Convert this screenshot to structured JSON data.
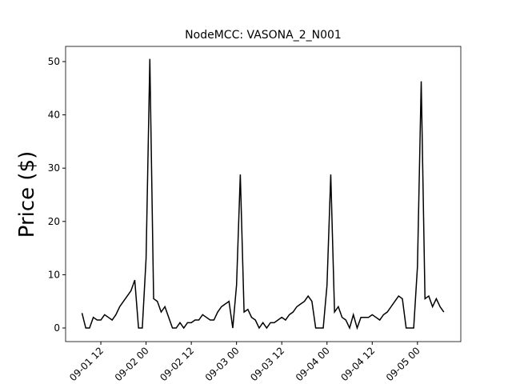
{
  "chart_data": {
    "type": "line",
    "title": "NodeMCC: VASONA_2_N001",
    "y_label": "Price ($)",
    "x": [
      7,
      8,
      9,
      10,
      11,
      12,
      13,
      14,
      15,
      16,
      17,
      18,
      19,
      20,
      21,
      22,
      23,
      24,
      25,
      26,
      27,
      28,
      29,
      30,
      31,
      32,
      33,
      34,
      35,
      36,
      37,
      38,
      39,
      40,
      41,
      42,
      43,
      44,
      45,
      46,
      47,
      48,
      49,
      50,
      51,
      52,
      53,
      54,
      55,
      56,
      57,
      58,
      59,
      60,
      61,
      62,
      63,
      64,
      65,
      66,
      67,
      68,
      69,
      70,
      71,
      72,
      73,
      74,
      75,
      76,
      77,
      78,
      79,
      80,
      81,
      82,
      83,
      84,
      85,
      86,
      87,
      88,
      89,
      90,
      91,
      92,
      93,
      94,
      95,
      96,
      97,
      98,
      99,
      100,
      101,
      102,
      103
    ],
    "series": [
      {
        "name": "VASONA_2_N001",
        "color": "#000000",
        "values": [
          2.8,
          0,
          0,
          2,
          1.5,
          1.5,
          2.5,
          2,
          1.5,
          2.5,
          4,
          5,
          6,
          7,
          9,
          0,
          0,
          13,
          50.5,
          5.5,
          5,
          3,
          4,
          2,
          0,
          0,
          1,
          0,
          1,
          1,
          1.5,
          1.5,
          2.5,
          2,
          1.5,
          1.5,
          3,
          4,
          4.5,
          5,
          0,
          8,
          28.8,
          3,
          3.5,
          2,
          1.5,
          0,
          1,
          0,
          1,
          1,
          1.5,
          2,
          1.5,
          2.5,
          3,
          4,
          4.5,
          5,
          6,
          5,
          0,
          0,
          0,
          8,
          28.8,
          3,
          4,
          2,
          1.5,
          0,
          2.5,
          0,
          2,
          2,
          2,
          2.5,
          2,
          1.5,
          2.5,
          3,
          4,
          5,
          6,
          5.5,
          0,
          0,
          0,
          11.5,
          46.3,
          5.5,
          6,
          4,
          5.5,
          4,
          3
        ]
      }
    ],
    "xlim": [
      2.65,
      107.5
    ],
    "xticks": [
      {
        "value": 12,
        "label": "09-01 12"
      },
      {
        "value": 24,
        "label": "09-02 00"
      },
      {
        "value": 36,
        "label": "09-02 12"
      },
      {
        "value": 48,
        "label": "09-03 00"
      },
      {
        "value": 60,
        "label": "09-03 12"
      },
      {
        "value": 72,
        "label": "09-04 00"
      },
      {
        "value": 84,
        "label": "09-04 12"
      },
      {
        "value": 96,
        "label": "09-05 00"
      }
    ],
    "ylim": [
      -2.55,
      52.85
    ],
    "yticks": [
      0,
      10,
      20,
      30,
      40,
      50
    ]
  }
}
